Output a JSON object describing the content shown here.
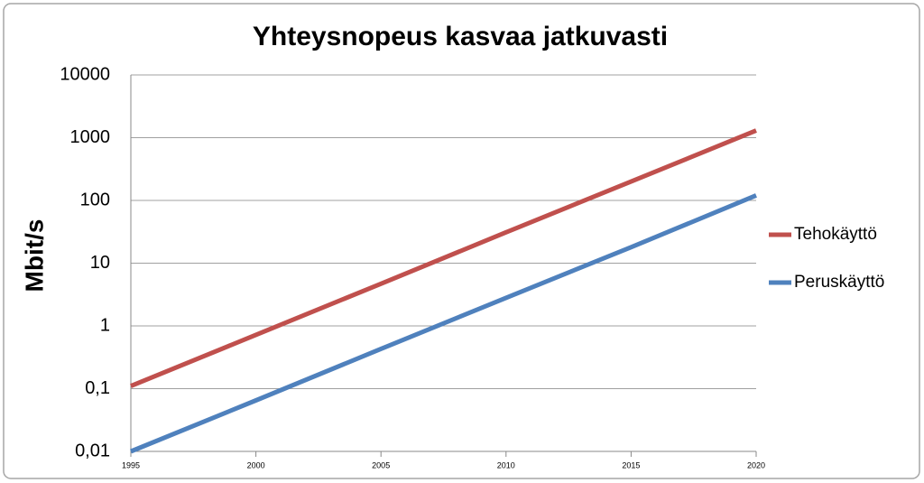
{
  "chart_data": {
    "type": "line",
    "title": "Yhteysnopeus kasvaa jatkuvasti",
    "y_label": "Mbit/s",
    "x": [
      1995,
      2000,
      2005,
      2010,
      2015,
      2020
    ],
    "series": [
      {
        "name": "Tehokäyttö",
        "color": "#c0504d",
        "values": [
          0.11,
          0.72,
          4.7,
          31,
          200,
          1300
        ]
      },
      {
        "name": "Peruskäyttö",
        "color": "#4f81bd",
        "values": [
          0.01,
          0.065,
          0.43,
          2.8,
          18,
          120
        ]
      }
    ],
    "xlim": [
      1995,
      2020
    ],
    "xticks": [
      1995,
      2000,
      2005,
      2010,
      2015,
      2020
    ],
    "ylim": [
      0.01,
      10000
    ],
    "log_y": true,
    "yticks": [
      {
        "value": 0.01,
        "label": "0,01"
      },
      {
        "value": 0.1,
        "label": "0,1"
      },
      1,
      10,
      100,
      1000,
      10000
    ],
    "grid": true,
    "legend": "right"
  }
}
